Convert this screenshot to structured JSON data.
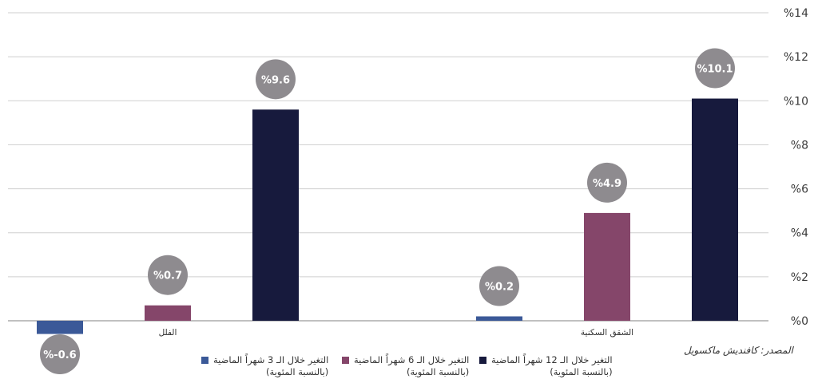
{
  "chart_data": {
    "type": "bar",
    "categories": [
      "الفلل",
      "الشقق السكنية"
    ],
    "series": [
      {
        "name": "التغير خلال الـ 3 شهراً الماضية (بالنسبة المئوية)",
        "values": [
          -0.6,
          0.2
        ],
        "labels": [
          "%-0.6",
          "%0.2"
        ],
        "color": "#3b5998"
      },
      {
        "name": "التغير خلال الـ 6 شهراً الماضية (بالنسبة المئوية)",
        "values": [
          0.7,
          4.9
        ],
        "labels": [
          "%0.7",
          "%4.9"
        ],
        "color": "#85466a"
      },
      {
        "name": "التغير خلال الـ 12 شهراً الماضية (بالنسبة المئوية)",
        "values": [
          9.6,
          10.1
        ],
        "labels": [
          "%9.6",
          "%10.1"
        ],
        "color": "#171a3d"
      }
    ],
    "ylim": [
      0,
      14
    ],
    "yticks": [
      "%0",
      "%2",
      "%4",
      "%6",
      "%8",
      "%10",
      "%12",
      "%14"
    ],
    "grid": true,
    "axis_side": "right",
    "label_bubble_color": "#8e8b8f"
  },
  "legend": [
    {
      "line1": "التغير خلال الـ 12 شهراً الماضية",
      "line2": "(بالنسبة المئوية)",
      "color": "#171a3d"
    },
    {
      "line1": "التغير خلال الـ 6 شهراً الماضية",
      "line2": "(بالنسبة المئوية)",
      "color": "#85466a"
    },
    {
      "line1": "التغير خلال الـ 3 شهراً الماضية",
      "line2": "(بالنسبة المئوية)",
      "color": "#3b5998"
    }
  ],
  "source": "المصدر: كافنديش ماكسويل"
}
